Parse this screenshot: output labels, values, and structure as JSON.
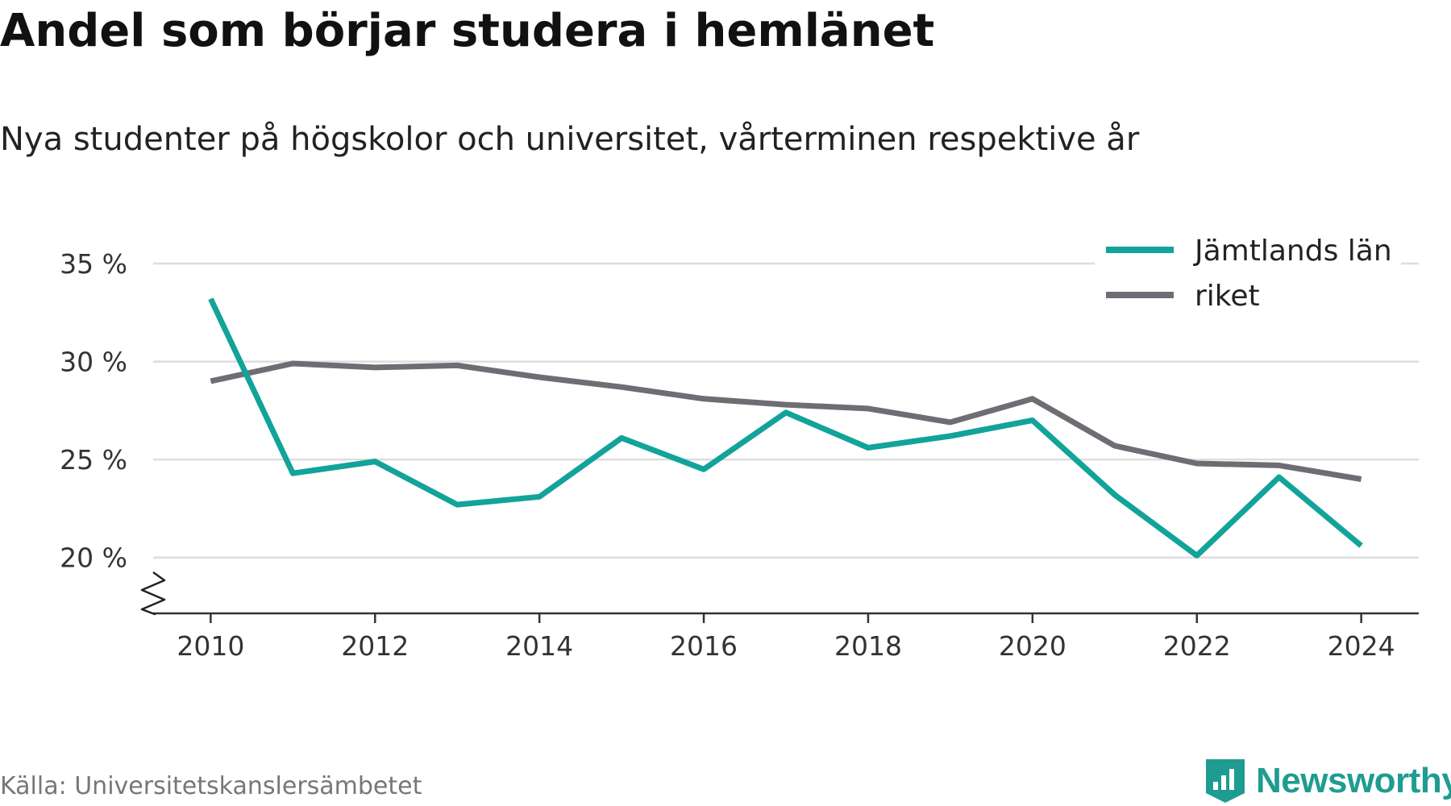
{
  "header": {
    "title": "Andel som börjar studera i hemlänet",
    "subtitle": "Nya studenter på högskolor och universitet, vårterminen respektive år"
  },
  "footer": {
    "source": "Källa: Universitetskanslersämbetet",
    "brand": "Newsworthy",
    "brand_icon": "bar-chart-shield-icon"
  },
  "colors": {
    "series_jamtland": "#12a39a",
    "series_riket": "#6e6d74",
    "grid": "#dddddd",
    "axis": "#333333",
    "brand": "#1f9c91"
  },
  "chart_data": {
    "type": "line",
    "title": "Andel som börjar studera i hemlänet",
    "subtitle": "Nya studenter på högskolor och universitet, vårterminen respektive år",
    "x": [
      2010,
      2011,
      2012,
      2013,
      2014,
      2015,
      2016,
      2017,
      2018,
      2019,
      2020,
      2021,
      2022,
      2023,
      2024
    ],
    "xticks": [
      2010,
      2012,
      2014,
      2016,
      2018,
      2020,
      2022,
      2024
    ],
    "xtick_labels": [
      "2010",
      "2012",
      "2014",
      "2016",
      "2018",
      "2020",
      "2022",
      "2024"
    ],
    "xlim": [
      2009.3,
      2024.7
    ],
    "yticks": [
      20,
      25,
      30,
      35
    ],
    "ytick_labels": [
      "20 %",
      "25 %",
      "30 %",
      "35 %"
    ],
    "ylim": [
      17.15,
      35
    ],
    "y_axis_break": true,
    "grid": "horizontal",
    "legend": "top-right",
    "series": [
      {
        "name": "Jämtlands län",
        "values": [
          33.2,
          24.3,
          24.9,
          22.7,
          23.1,
          26.1,
          24.5,
          27.4,
          25.6,
          26.2,
          27.0,
          23.2,
          20.1,
          24.1,
          20.6
        ]
      },
      {
        "name": "riket",
        "values": [
          29.0,
          29.9,
          29.7,
          29.8,
          29.2,
          28.7,
          28.1,
          27.8,
          27.6,
          26.9,
          28.1,
          25.7,
          24.8,
          24.7,
          24.0
        ]
      }
    ]
  }
}
